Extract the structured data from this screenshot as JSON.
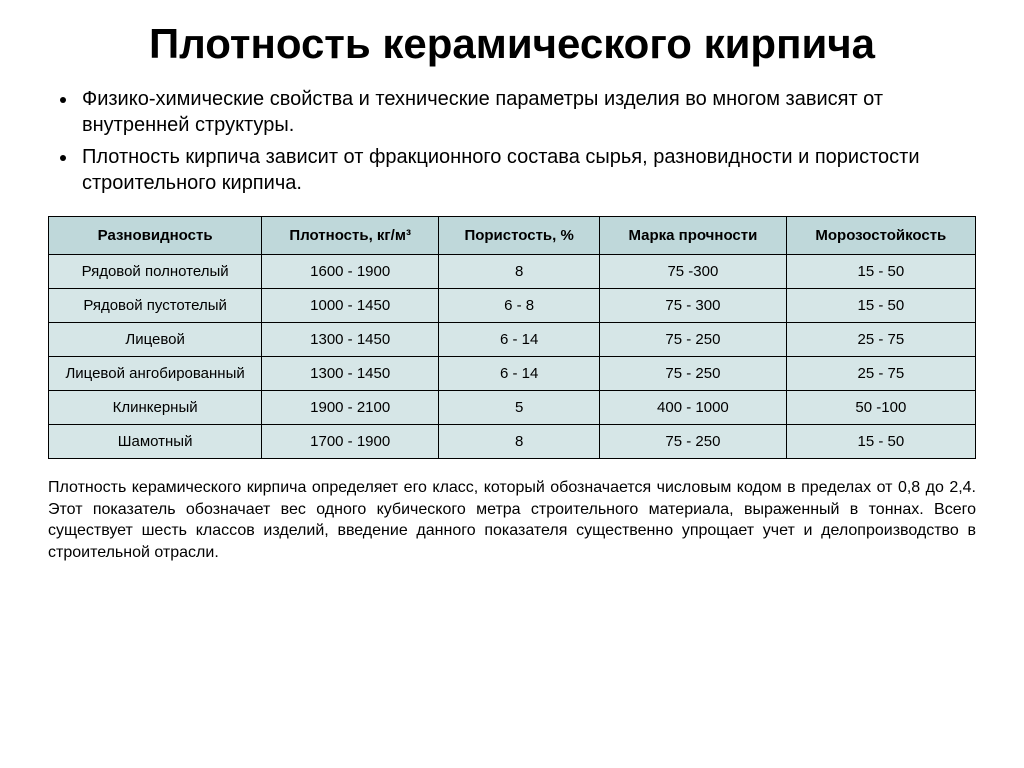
{
  "title": "Плотность керамического кирпича",
  "bullets": [
    "Физико-химические свойства и технические параметры изделия во многом зависят от внутренней структуры.",
    "Плотность кирпича зависит от фракционного состава сырья, разновидности и пористости строительного кирпича."
  ],
  "table": {
    "header_bg": "#bfd8da",
    "cell_bg": "#d6e6e7",
    "border_color": "#000000",
    "columns": [
      "Разновидность",
      "Плотность, кг/м³",
      "Пористость, %",
      "Марка прочности",
      "Морозостойкость"
    ],
    "rows": [
      [
        "Рядовой полнотелый",
        "1600 - 1900",
        "8",
        "75 -300",
        "15 - 50"
      ],
      [
        "Рядовой пустотелый",
        "1000 - 1450",
        "6 - 8",
        "75 - 300",
        "15 - 50"
      ],
      [
        "Лицевой",
        "1300 - 1450",
        "6 - 14",
        "75 - 250",
        "25 - 75"
      ],
      [
        "Лицевой ангобированный",
        "1300 - 1450",
        "6 - 14",
        "75 - 250",
        "25 - 75"
      ],
      [
        "Клинкерный",
        "1900 - 2100",
        "5",
        "400 - 1000",
        "50 -100"
      ],
      [
        "Шамотный",
        "1700 - 1900",
        "8",
        "75 - 250",
        "15 - 50"
      ]
    ]
  },
  "footer": "Плотность керамического кирпича определяет его класс, который обозначается числовым кодом в пределах от 0,8 до 2,4. Этот показатель обозначает вес одного кубического метра строительного материала, выраженный в тоннах. Всего существует шесть классов изделий, введение данного показателя существенно упрощает учет и делопроизводство в строительной отрасли."
}
